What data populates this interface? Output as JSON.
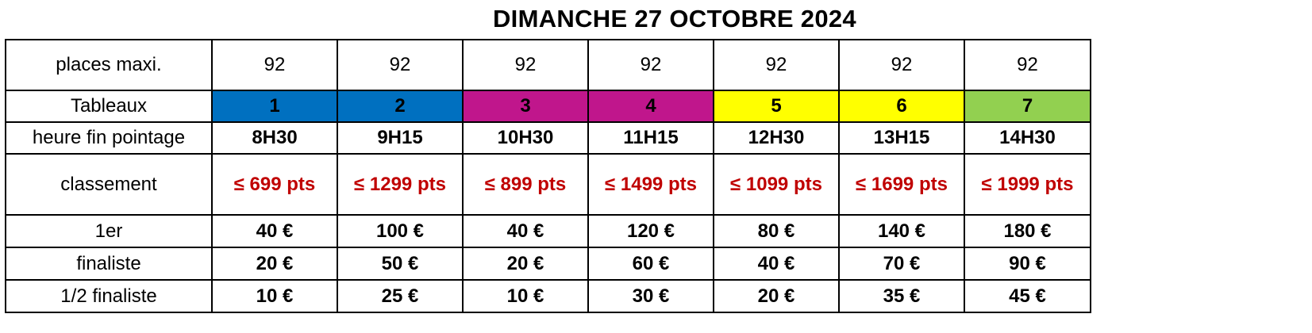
{
  "title": "DIMANCHE 27 OCTOBRE 2024",
  "colors": {
    "blue": "#0070c0",
    "magenta": "#c0168c",
    "yellow": "#ffff00",
    "green": "#92d050",
    "red_text": "#c00000"
  },
  "rows": {
    "places": {
      "label": "places maxi.",
      "values": [
        "92",
        "92",
        "92",
        "92",
        "92",
        "92",
        "92"
      ]
    },
    "tableaux": {
      "label": "Tableaux",
      "values": [
        "1",
        "2",
        "3",
        "4",
        "5",
        "6",
        "7"
      ],
      "cell_colors": [
        "#0070c0",
        "#0070c0",
        "#c0168c",
        "#c0168c",
        "#ffff00",
        "#ffff00",
        "#92d050"
      ]
    },
    "heure": {
      "label": "heure fin pointage",
      "values": [
        "8H30",
        "9H15",
        "10H30",
        "11H15",
        "12H30",
        "13H15",
        "14H30"
      ]
    },
    "classement": {
      "label": "classement",
      "values": [
        "≤ 699 pts",
        "≤ 1299 pts",
        "≤ 899 pts",
        "≤ 1499 pts",
        "≤ 1099 pts",
        "≤ 1699 pts",
        "≤ 1999 pts"
      ]
    },
    "premier": {
      "label": "1er",
      "values": [
        "40 €",
        "100 €",
        "40 €",
        "120 €",
        "80 €",
        "140 €",
        "180 €"
      ]
    },
    "finaliste": {
      "label": "finaliste",
      "values": [
        "20 €",
        "50 €",
        "20 €",
        "60 €",
        "40 €",
        "70 €",
        "90 €"
      ]
    },
    "demi": {
      "label": "1/2 finaliste",
      "values": [
        "10 €",
        "25 €",
        "10 €",
        "30 €",
        "20 €",
        "35 €",
        "45 €"
      ]
    }
  }
}
